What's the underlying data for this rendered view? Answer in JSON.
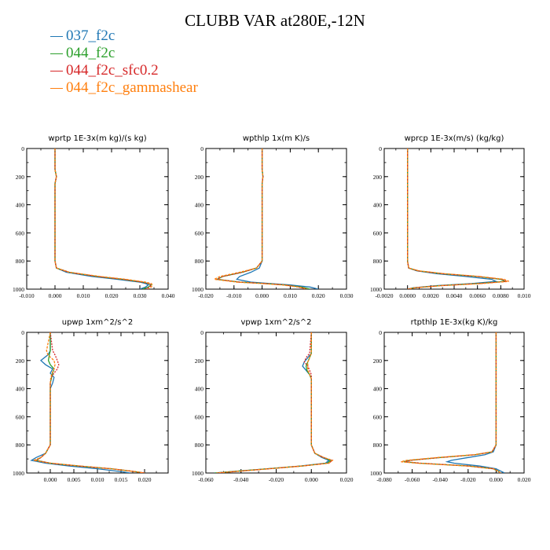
{
  "title": "CLUBB VAR at280E,-12N",
  "legend": [
    {
      "label": "037_f2c",
      "color": "#1f77b4"
    },
    {
      "label": "044_f2c",
      "color": "#2ca02c"
    },
    {
      "label": "044_f2c_sfc0.2",
      "color": "#d62728"
    },
    {
      "label": "044_f2c_gammashear",
      "color": "#ff7f0e"
    }
  ],
  "chart_data": [
    {
      "type": "line",
      "title": "wprtp   1E-3x(m kg)/(s kg)",
      "xlim": [
        -0.01,
        0.04
      ],
      "ylim": [
        1000,
        0
      ],
      "yreverse": true,
      "xticks": [
        "-0.010",
        "0.000",
        "0.010",
        "0.020",
        "0.030",
        "0.040"
      ],
      "yticks": [
        "0",
        "200",
        "400",
        "600",
        "800",
        "1000"
      ],
      "y": [
        0,
        150,
        200,
        250,
        400,
        600,
        800,
        850,
        880,
        910,
        930,
        950,
        960,
        970,
        985,
        1000
      ],
      "series": [
        {
          "name": "037_f2c",
          "values": [
            0.0,
            0.0,
            0.0005,
            0.0,
            0.0,
            0.0,
            0.0,
            0.0005,
            0.004,
            0.013,
            0.022,
            0.03,
            0.032,
            0.033,
            0.032,
            0.03
          ]
        },
        {
          "name": "044_f2c",
          "values": [
            0.0,
            0.0,
            0.0005,
            0.0,
            0.0,
            0.0,
            0.0,
            0.0005,
            0.005,
            0.015,
            0.024,
            0.031,
            0.033,
            0.034,
            0.033,
            0.031
          ]
        },
        {
          "name": "044_f2c_sfc0.2",
          "values": [
            0.0,
            0.0,
            0.0005,
            0.0,
            0.0,
            0.0,
            0.0,
            0.0005,
            0.005,
            0.015,
            0.024,
            0.031,
            0.033,
            0.034,
            0.0335,
            0.032
          ]
        },
        {
          "name": "044_f2c_gammashear",
          "values": [
            0.0,
            0.0,
            0.0005,
            0.0,
            0.0,
            0.0,
            0.0,
            0.0005,
            0.005,
            0.016,
            0.025,
            0.032,
            0.034,
            0.0345,
            0.034,
            0.033
          ]
        }
      ]
    },
    {
      "type": "line",
      "title": "wpthlp   1x(m K)/s",
      "xlim": [
        -0.02,
        0.03
      ],
      "ylim": [
        1000,
        0
      ],
      "yreverse": true,
      "xticks": [
        "-0.020",
        "-0.010",
        "0.000",
        "0.010",
        "0.020",
        "0.030"
      ],
      "yticks": [
        "0",
        "200",
        "400",
        "600",
        "800",
        "1000"
      ],
      "y": [
        0,
        150,
        200,
        250,
        400,
        600,
        800,
        850,
        880,
        910,
        930,
        950,
        960,
        970,
        985,
        1000
      ],
      "series": [
        {
          "name": "037_f2c",
          "values": [
            0.0,
            0.0,
            0.0003,
            0.0,
            0.0,
            0.0,
            0.0,
            -0.001,
            -0.004,
            -0.008,
            -0.009,
            -0.004,
            0.003,
            0.01,
            0.017,
            0.02
          ]
        },
        {
          "name": "044_f2c",
          "values": [
            0.0,
            0.0,
            0.0003,
            0.0,
            0.0,
            0.0,
            0.0,
            -0.002,
            -0.007,
            -0.014,
            -0.016,
            -0.008,
            0.001,
            0.008,
            0.014,
            0.017
          ]
        },
        {
          "name": "044_f2c_sfc0.2",
          "values": [
            0.0,
            0.0,
            0.0003,
            0.0,
            0.0,
            0.0,
            0.0,
            -0.002,
            -0.007,
            -0.014,
            -0.016,
            -0.008,
            0.001,
            0.008,
            0.013,
            0.016
          ]
        },
        {
          "name": "044_f2c_gammashear",
          "values": [
            0.0,
            0.0,
            0.0003,
            0.0,
            0.0,
            0.0,
            0.0,
            -0.002,
            -0.008,
            -0.015,
            -0.017,
            -0.009,
            0.0,
            0.007,
            0.013,
            0.016
          ]
        }
      ]
    },
    {
      "type": "line",
      "title": "wprcp   1E-3x(m/s) (kg/kg)",
      "xlim": [
        -0.002,
        0.01
      ],
      "ylim": [
        1000,
        0
      ],
      "yreverse": true,
      "xticks": [
        "-0.0020",
        "0.0000",
        "0.0020",
        "0.0040",
        "0.0060",
        "0.0080",
        "0.010"
      ],
      "yticks": [
        "0",
        "200",
        "400",
        "600",
        "800",
        "1000"
      ],
      "y": [
        0,
        400,
        800,
        850,
        870,
        890,
        910,
        930,
        945,
        960,
        975,
        990,
        1000
      ],
      "series": [
        {
          "name": "037_f2c",
          "values": [
            0,
            0,
            0,
            0.0001,
            0.0008,
            0.0025,
            0.005,
            0.0072,
            0.0076,
            0.0055,
            0.0025,
            0.0005,
            0
          ]
        },
        {
          "name": "044_f2c",
          "values": [
            0,
            0,
            0,
            0.0001,
            0.0009,
            0.003,
            0.006,
            0.008,
            0.0084,
            0.006,
            0.0028,
            0.0006,
            0
          ]
        },
        {
          "name": "044_f2c_sfc0.2",
          "values": [
            0,
            0,
            0,
            0.0001,
            0.0009,
            0.003,
            0.0061,
            0.0081,
            0.0085,
            0.0062,
            0.0029,
            0.0006,
            0
          ]
        },
        {
          "name": "044_f2c_gammashear",
          "values": [
            0,
            0,
            0,
            0.0001,
            0.001,
            0.0031,
            0.0062,
            0.0083,
            0.0087,
            0.0064,
            0.003,
            0.0007,
            0
          ]
        }
      ]
    },
    {
      "type": "line",
      "title": "upwp   1xm^2/s^2",
      "xlim": [
        -0.005,
        0.025
      ],
      "ylim": [
        1000,
        0
      ],
      "yreverse": true,
      "xticks": [
        "0.000",
        "0.005",
        "0.010",
        "0.015",
        "0.020"
      ],
      "yticks": [
        "0",
        "200",
        "400",
        "600",
        "800",
        "1000"
      ],
      "y": [
        0,
        130,
        160,
        200,
        230,
        260,
        290,
        320,
        360,
        400,
        600,
        800,
        860,
        890,
        910,
        930,
        950,
        970,
        990,
        1000
      ],
      "series": [
        {
          "name": "037_f2c",
          "values": [
            0,
            0,
            -0.0005,
            -0.002,
            -0.001,
            0.0005,
            0.0,
            0.0008,
            0.0005,
            0,
            0,
            0,
            -0.001,
            -0.003,
            -0.004,
            -0.001,
            0.004,
            0.01,
            0.015,
            0.017
          ]
        },
        {
          "name": "044_f2c",
          "values": [
            0,
            0,
            -0.0002,
            -0.0004,
            0.0,
            0.0008,
            0.0005,
            0.0003,
            0.0,
            0,
            0,
            0,
            -0.001,
            -0.002,
            -0.003,
            0.0,
            0.006,
            0.013,
            0.018,
            0.02
          ]
        },
        {
          "name": "044_f2c_sfc0.2",
          "values": [
            0,
            0.0005,
            0.001,
            0.0015,
            0.0018,
            0.0015,
            0.0008,
            0.0002,
            0.0,
            0,
            0,
            0,
            -0.001,
            -0.002,
            -0.003,
            0.0,
            0.006,
            0.013,
            0.018,
            0.02
          ]
        },
        {
          "name": "044_f2c_gammashear",
          "values": [
            0,
            -0.0008,
            -0.0005,
            0.0008,
            0.001,
            0.0008,
            0.0004,
            0.0001,
            0.0,
            0,
            0,
            0,
            -0.001,
            -0.002,
            -0.0035,
            0.0,
            0.006,
            0.013,
            0.018,
            0.02
          ]
        }
      ]
    },
    {
      "type": "line",
      "title": "vpwp   1xm^2/s^2",
      "xlim": [
        -0.06,
        0.02
      ],
      "ylim": [
        1000,
        0
      ],
      "yreverse": true,
      "xticks": [
        "-0.060",
        "-0.040",
        "-0.020",
        "0.000",
        "0.020"
      ],
      "yticks": [
        "0",
        "200",
        "400",
        "600",
        "800",
        "1000"
      ],
      "y": [
        0,
        150,
        180,
        210,
        240,
        270,
        300,
        330,
        360,
        400,
        600,
        800,
        860,
        890,
        910,
        930,
        950,
        970,
        990,
        1000
      ],
      "series": [
        {
          "name": "037_f2c",
          "values": [
            0,
            0,
            -0.002,
            -0.004,
            -0.005,
            -0.003,
            -0.001,
            0.0,
            0.0,
            0,
            0,
            0,
            0.002,
            0.006,
            0.01,
            0.008,
            -0.006,
            -0.025,
            -0.045,
            -0.055
          ]
        },
        {
          "name": "044_f2c",
          "values": [
            0,
            0,
            -0.001,
            -0.002,
            -0.003,
            -0.0025,
            -0.001,
            0.0,
            0.0,
            0,
            0,
            0,
            0.002,
            0.007,
            0.011,
            0.009,
            -0.005,
            -0.025,
            -0.045,
            -0.055
          ]
        },
        {
          "name": "044_f2c_sfc0.2",
          "values": [
            0,
            -0.001,
            -0.003,
            -0.004,
            -0.002,
            -0.001,
            0.0,
            0.0,
            0.0,
            0,
            0,
            0,
            0.002,
            0.007,
            0.012,
            0.01,
            -0.005,
            -0.024,
            -0.044,
            -0.054
          ]
        },
        {
          "name": "044_f2c_gammashear",
          "values": [
            0,
            0,
            -0.001,
            -0.002,
            -0.002,
            -0.002,
            -0.001,
            0.0,
            0.0,
            0,
            0,
            0,
            0.002,
            0.007,
            0.012,
            0.01,
            -0.005,
            -0.024,
            -0.044,
            -0.054
          ]
        }
      ]
    },
    {
      "type": "line",
      "title": "rtpthlp   1E-3x(kg K)/kg",
      "xlim": [
        -0.08,
        0.02
      ],
      "ylim": [
        1000,
        0
      ],
      "yreverse": true,
      "xticks": [
        "-0.080",
        "-0.060",
        "-0.040",
        "-0.020",
        "0.000",
        "0.020"
      ],
      "yticks": [
        "0",
        "200",
        "400",
        "600",
        "800",
        "1000"
      ],
      "y": [
        0,
        400,
        800,
        850,
        870,
        890,
        910,
        920,
        930,
        950,
        970,
        990,
        1000
      ],
      "series": [
        {
          "name": "037_f2c",
          "values": [
            0,
            0,
            0,
            -0.002,
            -0.008,
            -0.02,
            -0.032,
            -0.035,
            -0.03,
            -0.012,
            0.0,
            0.004,
            0.006
          ]
        },
        {
          "name": "044_f2c",
          "values": [
            0,
            0,
            0,
            -0.003,
            -0.015,
            -0.04,
            -0.062,
            -0.066,
            -0.055,
            -0.02,
            -0.002,
            0.002,
            0.003
          ]
        },
        {
          "name": "044_f2c_sfc0.2",
          "values": [
            0,
            0,
            0,
            -0.003,
            -0.015,
            -0.04,
            -0.061,
            -0.065,
            -0.054,
            -0.02,
            -0.002,
            0.002,
            0.003
          ]
        },
        {
          "name": "044_f2c_gammashear",
          "values": [
            0,
            0,
            0,
            -0.003,
            -0.016,
            -0.042,
            -0.064,
            -0.068,
            -0.057,
            -0.021,
            -0.002,
            0.002,
            0.003
          ]
        }
      ]
    }
  ]
}
